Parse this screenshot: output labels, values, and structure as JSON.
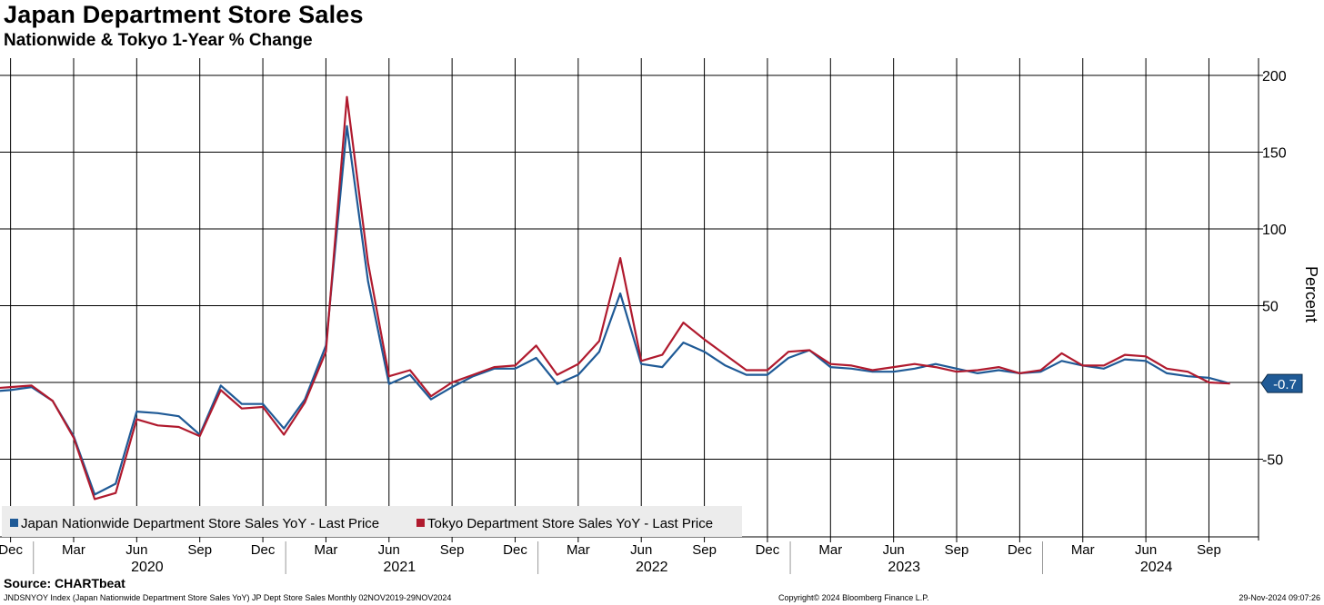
{
  "header": {
    "title": "Japan Department Store Sales",
    "subtitle": "Nationwide & Tokyo 1-Year % Change"
  },
  "footer": {
    "source": "Source: CHARTbeat",
    "ticker_info": "JNDSNYOY Index (Japan Nationwide Department Store Sales YoY) JP Dept Store Sales  Monthly 02NOV2019-29NOV2024",
    "copyright": "Copyright© 2024 Bloomberg Finance L.P.",
    "timestamp": "29-Nov-2024 09:07:26"
  },
  "chart_data": {
    "type": "line",
    "title": "Japan Department Store Sales",
    "subtitle": "Nationwide & Tokyo 1-Year % Change",
    "ylabel": "Percent",
    "xlabel": "",
    "ylim": [
      -100,
      210
    ],
    "yticks": [
      -50,
      0,
      50,
      100,
      150,
      200
    ],
    "grid": true,
    "legend_position": "bottom-left",
    "last_value_label": "-0.7",
    "x_month_ticks": [
      "Dec",
      "Mar",
      "Jun",
      "Sep",
      "Dec",
      "Mar",
      "Jun",
      "Sep",
      "Dec",
      "Mar",
      "Jun",
      "Sep",
      "Dec",
      "Mar",
      "Jun",
      "Sep",
      "Dec",
      "Mar",
      "Jun",
      "Sep"
    ],
    "x_year_labels": [
      "2020",
      "2021",
      "2022",
      "2023",
      "2024"
    ],
    "x_start": "2019-11",
    "x": [
      "2019-11",
      "2019-12",
      "2020-01",
      "2020-02",
      "2020-03",
      "2020-04",
      "2020-05",
      "2020-06",
      "2020-07",
      "2020-08",
      "2020-09",
      "2020-10",
      "2020-11",
      "2020-12",
      "2021-01",
      "2021-02",
      "2021-03",
      "2021-04",
      "2021-05",
      "2021-06",
      "2021-07",
      "2021-08",
      "2021-09",
      "2021-10",
      "2021-11",
      "2021-12",
      "2022-01",
      "2022-02",
      "2022-03",
      "2022-04",
      "2022-05",
      "2022-06",
      "2022-07",
      "2022-08",
      "2022-09",
      "2022-10",
      "2022-11",
      "2022-12",
      "2023-01",
      "2023-02",
      "2023-03",
      "2023-04",
      "2023-05",
      "2023-06",
      "2023-07",
      "2023-08",
      "2023-09",
      "2023-10",
      "2023-11",
      "2023-12",
      "2024-01",
      "2024-02",
      "2024-03",
      "2024-04",
      "2024-05",
      "2024-06",
      "2024-07",
      "2024-08",
      "2024-09",
      "2024-10"
    ],
    "series": [
      {
        "name": "Japan Nationwide Department Store Sales YoY - Last Price",
        "color": "#1f5a96",
        "values": [
          -6,
          -5,
          -3,
          -12,
          -35,
          -73,
          -66,
          -19,
          -20,
          -22,
          -34,
          -2,
          -14,
          -14,
          -30,
          -11,
          24,
          167,
          66,
          -1,
          5,
          -11,
          -3,
          4,
          9,
          9,
          16,
          -1,
          5,
          20,
          58,
          12,
          10,
          26,
          20,
          11,
          5,
          5,
          16,
          21,
          10,
          9,
          7,
          7,
          9,
          12,
          9,
          6,
          8,
          6,
          7,
          14,
          11,
          9,
          15,
          14,
          6,
          4,
          3,
          -0.7
        ]
      },
      {
        "name": "Tokyo Department Store Sales YoY - Last Price",
        "color": "#b01a2e",
        "values": [
          -4,
          -3,
          -2,
          -12,
          -36,
          -76,
          -72,
          -24,
          -28,
          -29,
          -35,
          -5,
          -17,
          -16,
          -34,
          -13,
          20,
          186,
          78,
          4,
          8,
          -9,
          0,
          5,
          10,
          11,
          24,
          5,
          12,
          27,
          81,
          14,
          18,
          39,
          28,
          18,
          8,
          8,
          20,
          21,
          12,
          11,
          8,
          10,
          12,
          10,
          7,
          8,
          10,
          6,
          8,
          19,
          11,
          11,
          18,
          17,
          9,
          7,
          0,
          -0.7
        ]
      }
    ]
  }
}
